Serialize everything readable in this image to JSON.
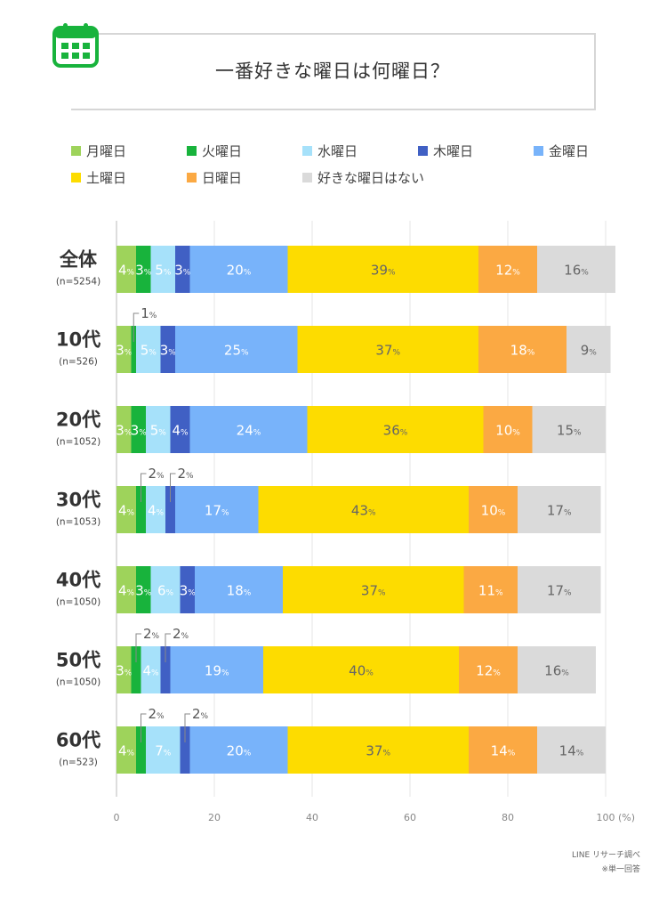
{
  "title": "一番好きな曜日は何曜日？",
  "source_lines": [
    "LINE リサーチ調べ",
    "※単一回答"
  ],
  "chart_data": {
    "type": "bar",
    "orientation": "horizontal",
    "stacked": true,
    "categories": [
      {
        "label": "全体",
        "sub": "(n=5254)"
      },
      {
        "label": "10代",
        "sub": "(n=526)"
      },
      {
        "label": "20代",
        "sub": "(n=1052)"
      },
      {
        "label": "30代",
        "sub": "(n=1053)"
      },
      {
        "label": "40代",
        "sub": "(n=1050)"
      },
      {
        "label": "50代",
        "sub": "(n=1050)"
      },
      {
        "label": "60代",
        "sub": "(n=523)"
      }
    ],
    "series": [
      {
        "name": "月曜日",
        "color": "#9ed35b",
        "values": [
          4,
          3,
          3,
          4,
          4,
          3,
          4
        ]
      },
      {
        "name": "火曜日",
        "color": "#18b33c",
        "values": [
          3,
          1,
          3,
          2,
          3,
          2,
          2
        ]
      },
      {
        "name": "水曜日",
        "color": "#a6e1fa",
        "values": [
          5,
          5,
          5,
          4,
          6,
          4,
          7
        ]
      },
      {
        "name": "木曜日",
        "color": "#4060c4",
        "values": [
          3,
          3,
          4,
          2,
          3,
          2,
          2
        ]
      },
      {
        "name": "金曜日",
        "color": "#78b3fa",
        "values": [
          20,
          25,
          24,
          17,
          18,
          19,
          20
        ]
      },
      {
        "name": "土曜日",
        "color": "#fddc00",
        "values": [
          39,
          37,
          36,
          43,
          37,
          40,
          37
        ]
      },
      {
        "name": "日曜日",
        "color": "#fba943",
        "values": [
          12,
          18,
          10,
          10,
          11,
          12,
          14
        ]
      },
      {
        "name": "好きな曜日はない",
        "color": "#dadada",
        "values": [
          16,
          9,
          15,
          17,
          17,
          16,
          14
        ]
      }
    ],
    "xlim": [
      0,
      100
    ],
    "xticks": [
      0,
      20,
      40,
      60,
      80,
      100
    ],
    "xunit": "(%)",
    "value_suffix": "%",
    "callouts": [
      {
        "row": 1,
        "series": 1
      },
      {
        "row": 3,
        "series": 1
      },
      {
        "row": 3,
        "series": 3
      },
      {
        "row": 5,
        "series": 1
      },
      {
        "row": 5,
        "series": 3
      },
      {
        "row": 6,
        "series": 1
      },
      {
        "row": 6,
        "series": 3
      }
    ],
    "legend_position": "top"
  }
}
